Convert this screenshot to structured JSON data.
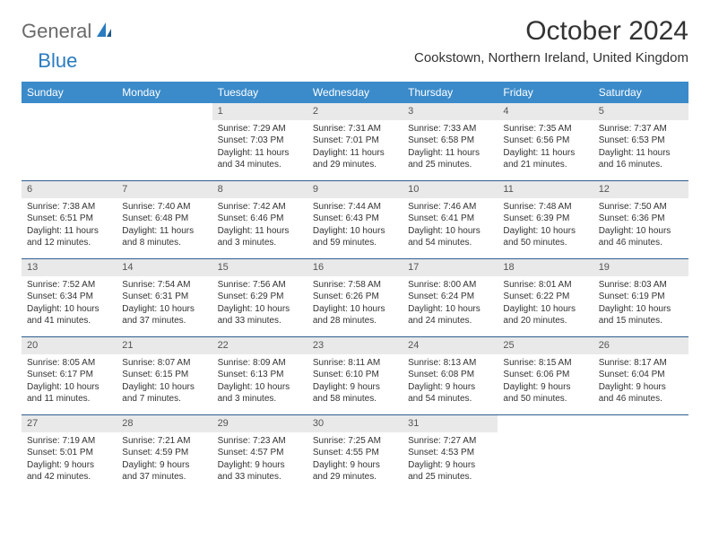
{
  "logo": {
    "text1": "General",
    "text2": "Blue"
  },
  "title": "October 2024",
  "location": "Cookstown, Northern Ireland, United Kingdom",
  "colors": {
    "header_bg": "#3b8bca",
    "header_text": "#ffffff",
    "daynum_bg": "#e9e9e9",
    "row_border": "#2e5e8e",
    "logo_gray": "#6a6a6a",
    "logo_blue": "#2a7bbf"
  },
  "dayNames": [
    "Sunday",
    "Monday",
    "Tuesday",
    "Wednesday",
    "Thursday",
    "Friday",
    "Saturday"
  ],
  "weeks": [
    [
      null,
      null,
      {
        "n": "1",
        "sr": "Sunrise: 7:29 AM",
        "ss": "Sunset: 7:03 PM",
        "dl": "Daylight: 11 hours and 34 minutes."
      },
      {
        "n": "2",
        "sr": "Sunrise: 7:31 AM",
        "ss": "Sunset: 7:01 PM",
        "dl": "Daylight: 11 hours and 29 minutes."
      },
      {
        "n": "3",
        "sr": "Sunrise: 7:33 AM",
        "ss": "Sunset: 6:58 PM",
        "dl": "Daylight: 11 hours and 25 minutes."
      },
      {
        "n": "4",
        "sr": "Sunrise: 7:35 AM",
        "ss": "Sunset: 6:56 PM",
        "dl": "Daylight: 11 hours and 21 minutes."
      },
      {
        "n": "5",
        "sr": "Sunrise: 7:37 AM",
        "ss": "Sunset: 6:53 PM",
        "dl": "Daylight: 11 hours and 16 minutes."
      }
    ],
    [
      {
        "n": "6",
        "sr": "Sunrise: 7:38 AM",
        "ss": "Sunset: 6:51 PM",
        "dl": "Daylight: 11 hours and 12 minutes."
      },
      {
        "n": "7",
        "sr": "Sunrise: 7:40 AM",
        "ss": "Sunset: 6:48 PM",
        "dl": "Daylight: 11 hours and 8 minutes."
      },
      {
        "n": "8",
        "sr": "Sunrise: 7:42 AM",
        "ss": "Sunset: 6:46 PM",
        "dl": "Daylight: 11 hours and 3 minutes."
      },
      {
        "n": "9",
        "sr": "Sunrise: 7:44 AM",
        "ss": "Sunset: 6:43 PM",
        "dl": "Daylight: 10 hours and 59 minutes."
      },
      {
        "n": "10",
        "sr": "Sunrise: 7:46 AM",
        "ss": "Sunset: 6:41 PM",
        "dl": "Daylight: 10 hours and 54 minutes."
      },
      {
        "n": "11",
        "sr": "Sunrise: 7:48 AM",
        "ss": "Sunset: 6:39 PM",
        "dl": "Daylight: 10 hours and 50 minutes."
      },
      {
        "n": "12",
        "sr": "Sunrise: 7:50 AM",
        "ss": "Sunset: 6:36 PM",
        "dl": "Daylight: 10 hours and 46 minutes."
      }
    ],
    [
      {
        "n": "13",
        "sr": "Sunrise: 7:52 AM",
        "ss": "Sunset: 6:34 PM",
        "dl": "Daylight: 10 hours and 41 minutes."
      },
      {
        "n": "14",
        "sr": "Sunrise: 7:54 AM",
        "ss": "Sunset: 6:31 PM",
        "dl": "Daylight: 10 hours and 37 minutes."
      },
      {
        "n": "15",
        "sr": "Sunrise: 7:56 AM",
        "ss": "Sunset: 6:29 PM",
        "dl": "Daylight: 10 hours and 33 minutes."
      },
      {
        "n": "16",
        "sr": "Sunrise: 7:58 AM",
        "ss": "Sunset: 6:26 PM",
        "dl": "Daylight: 10 hours and 28 minutes."
      },
      {
        "n": "17",
        "sr": "Sunrise: 8:00 AM",
        "ss": "Sunset: 6:24 PM",
        "dl": "Daylight: 10 hours and 24 minutes."
      },
      {
        "n": "18",
        "sr": "Sunrise: 8:01 AM",
        "ss": "Sunset: 6:22 PM",
        "dl": "Daylight: 10 hours and 20 minutes."
      },
      {
        "n": "19",
        "sr": "Sunrise: 8:03 AM",
        "ss": "Sunset: 6:19 PM",
        "dl": "Daylight: 10 hours and 15 minutes."
      }
    ],
    [
      {
        "n": "20",
        "sr": "Sunrise: 8:05 AM",
        "ss": "Sunset: 6:17 PM",
        "dl": "Daylight: 10 hours and 11 minutes."
      },
      {
        "n": "21",
        "sr": "Sunrise: 8:07 AM",
        "ss": "Sunset: 6:15 PM",
        "dl": "Daylight: 10 hours and 7 minutes."
      },
      {
        "n": "22",
        "sr": "Sunrise: 8:09 AM",
        "ss": "Sunset: 6:13 PM",
        "dl": "Daylight: 10 hours and 3 minutes."
      },
      {
        "n": "23",
        "sr": "Sunrise: 8:11 AM",
        "ss": "Sunset: 6:10 PM",
        "dl": "Daylight: 9 hours and 58 minutes."
      },
      {
        "n": "24",
        "sr": "Sunrise: 8:13 AM",
        "ss": "Sunset: 6:08 PM",
        "dl": "Daylight: 9 hours and 54 minutes."
      },
      {
        "n": "25",
        "sr": "Sunrise: 8:15 AM",
        "ss": "Sunset: 6:06 PM",
        "dl": "Daylight: 9 hours and 50 minutes."
      },
      {
        "n": "26",
        "sr": "Sunrise: 8:17 AM",
        "ss": "Sunset: 6:04 PM",
        "dl": "Daylight: 9 hours and 46 minutes."
      }
    ],
    [
      {
        "n": "27",
        "sr": "Sunrise: 7:19 AM",
        "ss": "Sunset: 5:01 PM",
        "dl": "Daylight: 9 hours and 42 minutes."
      },
      {
        "n": "28",
        "sr": "Sunrise: 7:21 AM",
        "ss": "Sunset: 4:59 PM",
        "dl": "Daylight: 9 hours and 37 minutes."
      },
      {
        "n": "29",
        "sr": "Sunrise: 7:23 AM",
        "ss": "Sunset: 4:57 PM",
        "dl": "Daylight: 9 hours and 33 minutes."
      },
      {
        "n": "30",
        "sr": "Sunrise: 7:25 AM",
        "ss": "Sunset: 4:55 PM",
        "dl": "Daylight: 9 hours and 29 minutes."
      },
      {
        "n": "31",
        "sr": "Sunrise: 7:27 AM",
        "ss": "Sunset: 4:53 PM",
        "dl": "Daylight: 9 hours and 25 minutes."
      },
      null,
      null
    ]
  ]
}
